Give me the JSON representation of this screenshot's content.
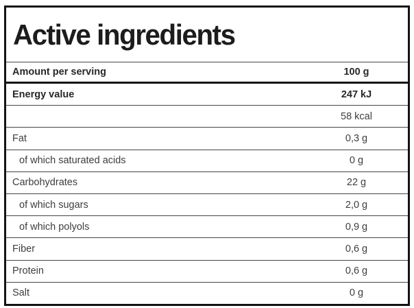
{
  "panel": {
    "title": "Active ingredients",
    "header": {
      "label": "Amount per serving",
      "value": "100 g"
    },
    "rows": [
      {
        "label": "Energy value",
        "value": "247 kJ",
        "bold": true,
        "indent": false
      },
      {
        "label": "",
        "value": "58 kcal",
        "bold": false,
        "indent": false
      },
      {
        "label": "Fat",
        "value": "0,3 g",
        "bold": false,
        "indent": false
      },
      {
        "label": "of which saturated acids",
        "value": "0 g",
        "bold": false,
        "indent": true
      },
      {
        "label": "Carbohydrates",
        "value": "22 g",
        "bold": false,
        "indent": false
      },
      {
        "label": "of which sugars",
        "value": "2,0 g",
        "bold": false,
        "indent": true
      },
      {
        "label": "of which polyols",
        "value": "0,9 g",
        "bold": false,
        "indent": true
      },
      {
        "label": "Fiber",
        "value": "0,6 g",
        "bold": false,
        "indent": false
      },
      {
        "label": "Protein",
        "value": "0,6 g",
        "bold": false,
        "indent": false
      },
      {
        "label": "Salt",
        "value": "0 g",
        "bold": false,
        "indent": false
      }
    ],
    "colors": {
      "outer_border": "#131313",
      "thick_rule": "#131313",
      "thin_rule": "#454545",
      "title_text": "#1c1c1c",
      "bold_text": "#282828",
      "body_text": "#3d3d3d",
      "background": "#ffffff"
    }
  }
}
